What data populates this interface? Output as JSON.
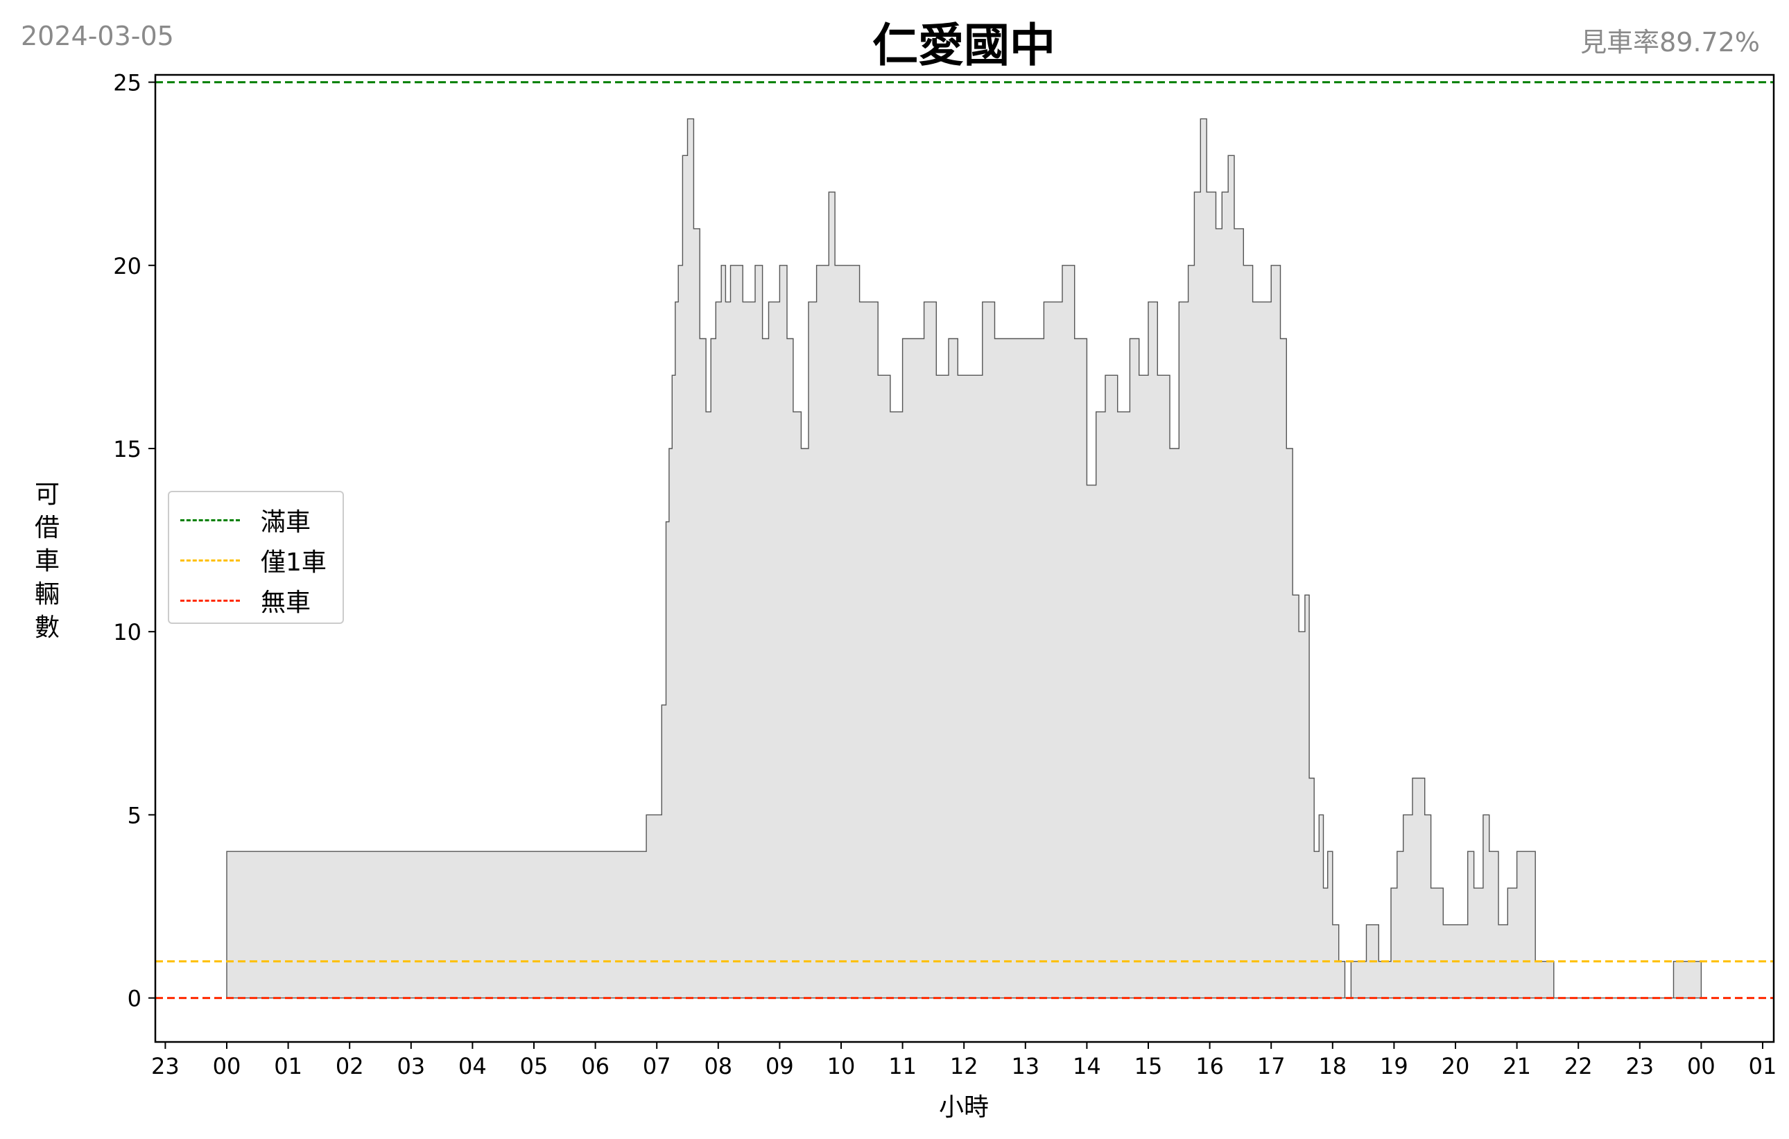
{
  "header": {
    "date": "2024-03-05",
    "title": "仁愛國中",
    "rate": "見車率89.72%"
  },
  "axes": {
    "ylabel": "可借車輛數",
    "xlabel": "小時",
    "y_ticks": [
      "0",
      "5",
      "10",
      "15",
      "20",
      "25"
    ],
    "x_ticks": [
      "23",
      "00",
      "01",
      "02",
      "03",
      "04",
      "05",
      "06",
      "07",
      "08",
      "09",
      "10",
      "11",
      "12",
      "13",
      "14",
      "15",
      "16",
      "17",
      "18",
      "19",
      "20",
      "21",
      "22",
      "23",
      "00",
      "01"
    ]
  },
  "legend": [
    {
      "label": "滿車",
      "color": "#008000"
    },
    {
      "label": "僅1車",
      "color": "#ffbf00"
    },
    {
      "label": "無車",
      "color": "#ff2a00"
    }
  ],
  "chart_data": {
    "type": "area",
    "step": true,
    "xlabel": "小時",
    "ylabel": "可借車輛數",
    "xlim": [
      -1.05,
      25.3
    ],
    "ylim": [
      -1.2,
      25.2
    ],
    "x_unit": "hours since 00:00 of 2024-03-05",
    "reference_lines": [
      {
        "label": "滿車",
        "y": 25,
        "color": "#008000"
      },
      {
        "label": "僅1車",
        "y": 1,
        "color": "#ffbf00"
      },
      {
        "label": "無車",
        "y": 0,
        "color": "#ff2a00"
      }
    ],
    "fill_color": "#e4e4e4",
    "line_color": "#555555",
    "x": [
      0.0,
      6.83,
      7.08,
      7.15,
      7.2,
      7.25,
      7.3,
      7.35,
      7.42,
      7.5,
      7.6,
      7.7,
      7.8,
      7.88,
      7.96,
      8.05,
      8.12,
      8.2,
      8.32,
      8.4,
      8.5,
      8.6,
      8.72,
      8.82,
      9.0,
      9.12,
      9.22,
      9.35,
      9.47,
      9.6,
      9.72,
      9.8,
      9.9,
      10.0,
      10.3,
      10.45,
      10.6,
      10.7,
      10.8,
      11.0,
      11.35,
      11.55,
      11.75,
      11.9,
      12.1,
      12.3,
      12.5,
      12.7,
      12.9,
      13.1,
      13.3,
      13.6,
      13.8,
      14.0,
      14.15,
      14.3,
      14.5,
      14.7,
      14.85,
      15.0,
      15.15,
      15.35,
      15.5,
      15.65,
      15.75,
      15.85,
      15.95,
      16.1,
      16.2,
      16.3,
      16.4,
      16.55,
      16.7,
      16.85,
      17.0,
      17.15,
      17.25,
      17.35,
      17.45,
      17.55,
      17.62,
      17.7,
      17.78,
      17.85,
      17.92,
      18.0,
      18.1,
      18.2,
      18.3,
      18.45,
      18.55,
      18.75,
      18.95,
      19.05,
      19.15,
      19.3,
      19.5,
      19.6,
      19.8,
      19.95,
      20.2,
      20.3,
      20.45,
      20.55,
      20.7,
      20.85,
      21.0,
      21.3,
      21.6,
      21.75,
      22.0,
      23.0,
      23.55,
      24.0
    ],
    "values": [
      4,
      5,
      8,
      13,
      15,
      17,
      19,
      20,
      23,
      24,
      21,
      18,
      16,
      18,
      19,
      20,
      19,
      20,
      20,
      19,
      19,
      20,
      18,
      19,
      20,
      18,
      16,
      15,
      19,
      20,
      20,
      22,
      20,
      20,
      19,
      19,
      17,
      17,
      16,
      18,
      19,
      17,
      18,
      17,
      17,
      19,
      18,
      18,
      18,
      18,
      19,
      20,
      18,
      14,
      16,
      17,
      16,
      18,
      17,
      19,
      17,
      15,
      19,
      20,
      22,
      24,
      22,
      21,
      22,
      23,
      21,
      20,
      19,
      19,
      20,
      18,
      15,
      11,
      10,
      11,
      6,
      4,
      5,
      3,
      4,
      2,
      1,
      0,
      1,
      1,
      2,
      1,
      3,
      4,
      5,
      6,
      5,
      3,
      2,
      2,
      4,
      3,
      5,
      4,
      2,
      3,
      4,
      1,
      0,
      0,
      0,
      0,
      1,
      1
    ]
  }
}
